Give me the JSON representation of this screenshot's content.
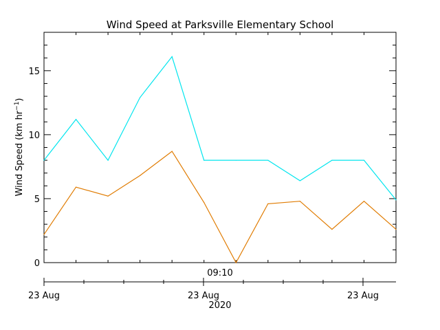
{
  "chart_data": {
    "type": "line",
    "title": "Wind Speed at Parksville Elementary School",
    "ylabel": {
      "main": "Wind Speed (km hr",
      "sup": "−1",
      "close": ")"
    },
    "ylim": [
      0,
      18
    ],
    "yticks": [
      0,
      5,
      10,
      15
    ],
    "x": [
      0,
      1,
      2,
      3,
      4,
      5,
      6,
      7,
      8,
      9,
      10,
      11
    ],
    "series": [
      {
        "color": "#00e5ee",
        "values": [
          8.0,
          11.2,
          8.0,
          12.9,
          16.1,
          8.0,
          8.0,
          8.0,
          6.4,
          8.0,
          8.0,
          4.9
        ]
      },
      {
        "color": "#e07b00",
        "values": [
          2.2,
          5.9,
          5.2,
          6.8,
          8.7,
          4.7,
          0.0,
          4.6,
          4.8,
          2.6,
          4.8,
          2.6
        ]
      }
    ],
    "time_axis": {
      "label": "09:10"
    },
    "date_axis": {
      "labels": [
        "23 Aug",
        "23 Aug",
        "23 Aug"
      ],
      "year": "2020"
    },
    "grid": false
  }
}
